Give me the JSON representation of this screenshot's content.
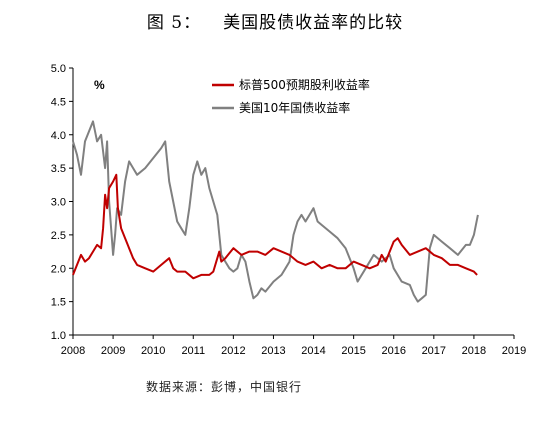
{
  "figure": {
    "number": "图 5：",
    "title": "美国股债收益率的比较",
    "source": "数据来源：彭博，中国银行"
  },
  "chart_data": {
    "type": "line",
    "unit_label": "%",
    "x_ticks": [
      "2008",
      "2009",
      "2010",
      "2011",
      "2012",
      "2013",
      "2014",
      "2015",
      "2016",
      "2017",
      "2018",
      "2019"
    ],
    "y_ticks": [
      "1.0",
      "1.5",
      "2.0",
      "2.5",
      "3.0",
      "3.5",
      "4.0",
      "4.5",
      "5.0"
    ],
    "xlim": [
      2008,
      2019
    ],
    "ylim": [
      1.0,
      5.0
    ],
    "grid": false,
    "legend_position": "top-right",
    "series": [
      {
        "name": "标普500预期股利收益率",
        "color": "#c00000",
        "x": [
          2008.0,
          2008.1,
          2008.2,
          2008.3,
          2008.4,
          2008.5,
          2008.6,
          2008.7,
          2008.75,
          2008.8,
          2008.85,
          2008.9,
          2009.0,
          2009.08,
          2009.12,
          2009.2,
          2009.3,
          2009.4,
          2009.5,
          2009.6,
          2009.8,
          2010.0,
          2010.2,
          2010.4,
          2010.5,
          2010.6,
          2010.8,
          2011.0,
          2011.2,
          2011.4,
          2011.5,
          2011.6,
          2011.65,
          2011.7,
          2011.8,
          2012.0,
          2012.2,
          2012.4,
          2012.6,
          2012.8,
          2013.0,
          2013.2,
          2013.4,
          2013.6,
          2013.8,
          2014.0,
          2014.2,
          2014.4,
          2014.6,
          2014.8,
          2015.0,
          2015.2,
          2015.4,
          2015.6,
          2015.7,
          2015.8,
          2016.0,
          2016.1,
          2016.2,
          2016.4,
          2016.6,
          2016.8,
          2017.0,
          2017.2,
          2017.4,
          2017.6,
          2017.8,
          2018.0,
          2018.08
        ],
        "y": [
          1.9,
          2.05,
          2.2,
          2.1,
          2.15,
          2.25,
          2.35,
          2.3,
          2.6,
          3.1,
          2.9,
          3.2,
          3.3,
          3.4,
          2.9,
          2.6,
          2.45,
          2.3,
          2.15,
          2.05,
          2.0,
          1.95,
          2.05,
          2.15,
          2.0,
          1.95,
          1.95,
          1.85,
          1.9,
          1.9,
          1.95,
          2.15,
          2.25,
          2.1,
          2.15,
          2.3,
          2.2,
          2.25,
          2.25,
          2.2,
          2.3,
          2.25,
          2.2,
          2.1,
          2.05,
          2.1,
          2.0,
          2.05,
          2.0,
          2.0,
          2.1,
          2.05,
          2.0,
          2.05,
          2.2,
          2.1,
          2.4,
          2.45,
          2.35,
          2.2,
          2.25,
          2.3,
          2.2,
          2.15,
          2.05,
          2.05,
          2.0,
          1.95,
          1.9
        ]
      },
      {
        "name": "美国10年国债收益率",
        "color": "#808080",
        "x": [
          2008.0,
          2008.1,
          2008.2,
          2008.3,
          2008.4,
          2008.5,
          2008.6,
          2008.7,
          2008.8,
          2008.85,
          2008.9,
          2008.95,
          2009.0,
          2009.05,
          2009.1,
          2009.2,
          2009.3,
          2009.4,
          2009.5,
          2009.6,
          2009.8,
          2010.0,
          2010.2,
          2010.3,
          2010.4,
          2010.5,
          2010.6,
          2010.7,
          2010.8,
          2010.9,
          2011.0,
          2011.1,
          2011.2,
          2011.3,
          2011.4,
          2011.5,
          2011.6,
          2011.7,
          2011.8,
          2011.9,
          2012.0,
          2012.1,
          2012.2,
          2012.3,
          2012.4,
          2012.5,
          2012.6,
          2012.7,
          2012.8,
          2013.0,
          2013.2,
          2013.3,
          2013.4,
          2013.5,
          2013.6,
          2013.7,
          2013.8,
          2014.0,
          2014.1,
          2014.2,
          2014.4,
          2014.6,
          2014.8,
          2015.0,
          2015.1,
          2015.3,
          2015.5,
          2015.7,
          2015.9,
          2016.0,
          2016.2,
          2016.4,
          2016.5,
          2016.6,
          2016.7,
          2016.8,
          2016.9,
          2017.0,
          2017.2,
          2017.4,
          2017.6,
          2017.8,
          2017.9,
          2018.0,
          2018.1
        ],
        "y": [
          3.9,
          3.7,
          3.4,
          3.9,
          4.05,
          4.2,
          3.9,
          4.0,
          3.5,
          3.9,
          3.0,
          2.6,
          2.2,
          2.5,
          2.9,
          2.8,
          3.3,
          3.6,
          3.5,
          3.4,
          3.5,
          3.65,
          3.8,
          3.9,
          3.3,
          3.0,
          2.7,
          2.6,
          2.5,
          2.9,
          3.4,
          3.6,
          3.4,
          3.5,
          3.2,
          3.0,
          2.8,
          2.2,
          2.1,
          2.0,
          1.95,
          2.0,
          2.2,
          2.1,
          1.8,
          1.55,
          1.6,
          1.7,
          1.65,
          1.8,
          1.9,
          2.0,
          2.1,
          2.5,
          2.7,
          2.8,
          2.7,
          2.9,
          2.7,
          2.65,
          2.55,
          2.45,
          2.3,
          2.0,
          1.8,
          2.0,
          2.2,
          2.1,
          2.2,
          2.0,
          1.8,
          1.75,
          1.6,
          1.5,
          1.55,
          1.6,
          2.3,
          2.5,
          2.4,
          2.3,
          2.2,
          2.35,
          2.35,
          2.5,
          2.8
        ]
      }
    ]
  }
}
